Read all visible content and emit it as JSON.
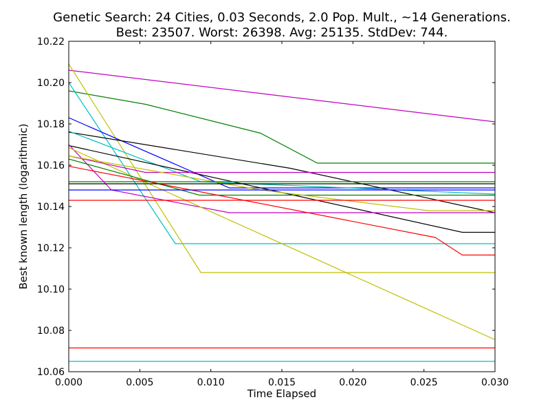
{
  "chart_data": {
    "type": "line",
    "title": "Genetic Search: 24 Cities, 0.03 Seconds, 2.0 Pop. Mult., ~14 Generations.",
    "subtitle": "Best: 23507. Worst: 26398. Avg: 25135. StdDev: 744.",
    "xlabel": "Time Elapsed",
    "ylabel": "Best known length (logarithmic)",
    "xlim": [
      0.0,
      0.03
    ],
    "ylim": [
      10.06,
      10.22
    ],
    "xticks": [
      "0.000",
      "0.005",
      "0.010",
      "0.015",
      "0.020",
      "0.025",
      "0.030"
    ],
    "yticks": [
      "10.06",
      "10.08",
      "10.10",
      "10.12",
      "10.14",
      "10.16",
      "10.18",
      "10.20",
      "10.22"
    ],
    "grid": false,
    "legend": "none",
    "series": [
      {
        "color": "#bf00bf",
        "x": [
          0.0,
          0.03
        ],
        "y": [
          10.206,
          10.181
        ]
      },
      {
        "color": "#008000",
        "x": [
          0.0,
          0.0054,
          0.0135,
          0.0175,
          0.03
        ],
        "y": [
          10.196,
          10.1895,
          10.1755,
          10.161,
          10.161
        ]
      },
      {
        "color": "#00bfbf",
        "x": [
          0.0,
          0.0075,
          0.03
        ],
        "y": [
          10.2,
          10.122,
          10.122
        ]
      },
      {
        "color": "#bfbf00",
        "x": [
          0.0,
          0.0093,
          0.03
        ],
        "y": [
          10.209,
          10.108,
          10.108
        ]
      },
      {
        "color": "#0000ff",
        "x": [
          0.0,
          0.0113,
          0.03
        ],
        "y": [
          10.183,
          10.149,
          10.149
        ]
      },
      {
        "color": "#000000",
        "x": [
          0.0,
          0.0156,
          0.03
        ],
        "y": [
          10.176,
          10.1585,
          10.137
        ]
      },
      {
        "color": "#00bfbf",
        "x": [
          0.0,
          0.0093,
          0.03
        ],
        "y": [
          10.1765,
          10.152,
          10.146
        ]
      },
      {
        "color": "#000000",
        "x": [
          0.0,
          0.0277,
          0.03
        ],
        "y": [
          10.1695,
          10.1275,
          10.1275
        ]
      },
      {
        "color": "#bf00bf",
        "x": [
          0.0,
          0.003,
          0.0113,
          0.03
        ],
        "y": [
          10.17,
          10.148,
          10.137,
          10.137
        ]
      },
      {
        "color": "#bfbf00",
        "x": [
          0.0,
          0.03
        ],
        "y": [
          10.1685,
          10.0755
        ]
      },
      {
        "color": "#bf00bf",
        "x": [
          0.0,
          0.0054,
          0.03
        ],
        "y": [
          10.1645,
          10.1565,
          10.1565
        ]
      },
      {
        "color": "#008000",
        "x": [
          0.0,
          0.0092,
          0.03
        ],
        "y": [
          10.163,
          10.1455,
          10.1455
        ]
      },
      {
        "color": "#ff0000",
        "x": [
          0.0,
          0.0258,
          0.0277,
          0.03
        ],
        "y": [
          10.1595,
          10.125,
          10.1165,
          10.1165
        ]
      },
      {
        "color": "#bfbf00",
        "x": [
          0.0,
          0.0135,
          0.0253,
          0.03
        ],
        "y": [
          10.1645,
          10.148,
          10.138,
          10.138
        ]
      },
      {
        "color": "#008000",
        "x": [
          0.0,
          0.03
        ],
        "y": [
          10.152,
          10.152
        ]
      },
      {
        "color": "#000000",
        "x": [
          0.0,
          0.03
        ],
        "y": [
          10.151,
          10.151
        ]
      },
      {
        "color": "#0000ff",
        "x": [
          0.0,
          0.03
        ],
        "y": [
          10.148,
          10.148
        ]
      },
      {
        "color": "#ff0000",
        "x": [
          0.0,
          0.03
        ],
        "y": [
          10.143,
          10.143
        ]
      },
      {
        "color": "#ff0000",
        "x": [
          0.0,
          0.03
        ],
        "y": [
          10.0715,
          10.0715
        ]
      },
      {
        "color": "#00bfbf",
        "x": [
          0.0,
          0.03
        ],
        "y": [
          10.065,
          10.065
        ]
      }
    ]
  }
}
